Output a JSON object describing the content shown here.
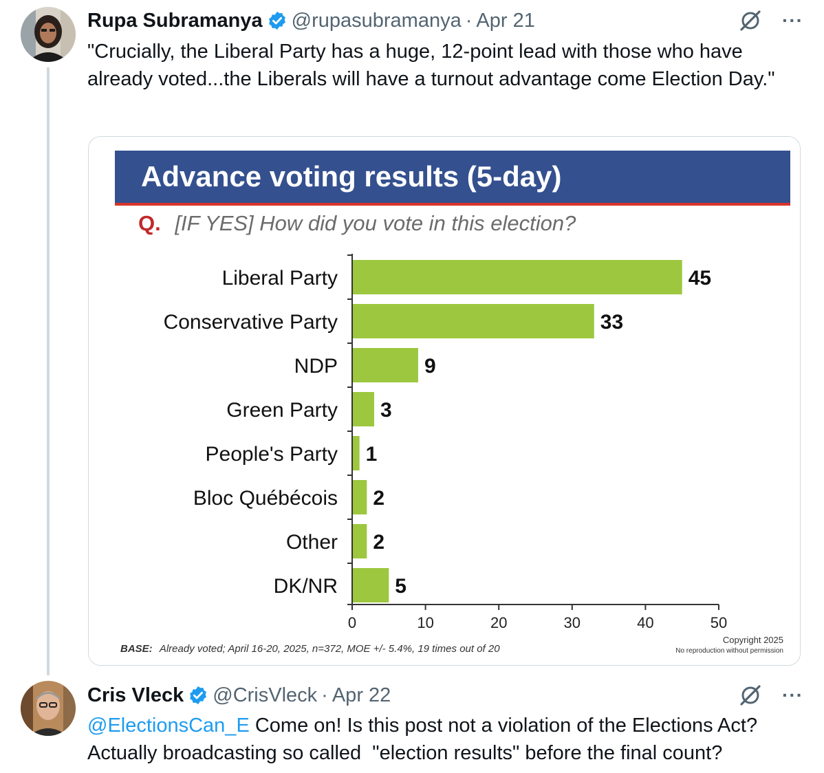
{
  "tweet1": {
    "author_name": "Rupa Subramanya",
    "handle": "@rupasubramanya",
    "separator": "·",
    "date": "Apr 21",
    "text": "\"Crucially, the Liberal Party has a huge, 12-point lead with those who have already voted...the Liberals will have a turnout advantage come Election Day.\"",
    "more_label": "···"
  },
  "chart": {
    "title": "Advance voting results (5-day)",
    "question_prefix": "Q.",
    "question": "[IF YES] How did you vote in this election?",
    "base_label": "BASE:",
    "base_text": "Already voted; April 16-20, 2025, n=372, MOE +/- 5.4%, 19 times out of 20",
    "copyright_line1": "Copyright 2025",
    "copyright_line2": "No reproduction without permission",
    "colors": {
      "header": "#34508f",
      "accent_line": "#d9342b",
      "bar": "#9dc73e",
      "question_prefix": "#c0292b"
    }
  },
  "chart_data": {
    "type": "bar",
    "orientation": "horizontal",
    "categories": [
      "Liberal Party",
      "Conservative Party",
      "NDP",
      "Green Party",
      "People's Party",
      "Bloc Québécois",
      "Other",
      "DK/NR"
    ],
    "values": [
      45,
      33,
      9,
      3,
      1,
      2,
      2,
      5
    ],
    "xlim": [
      0,
      50
    ],
    "xticks": [
      "0",
      "10",
      "20",
      "30",
      "40",
      "50"
    ],
    "grid": false
  },
  "tweet2": {
    "author_name": "Cris Vleck",
    "handle": "@CrisVleck",
    "separator": "·",
    "date": "Apr 22",
    "mention": "@ElectionsCan_E",
    "text_line1": " Come on! Is this post not a violation of the Elections Act?",
    "text_line2": "Actually broadcasting so called  \"election results\" before the final count?",
    "more_label": "···"
  }
}
